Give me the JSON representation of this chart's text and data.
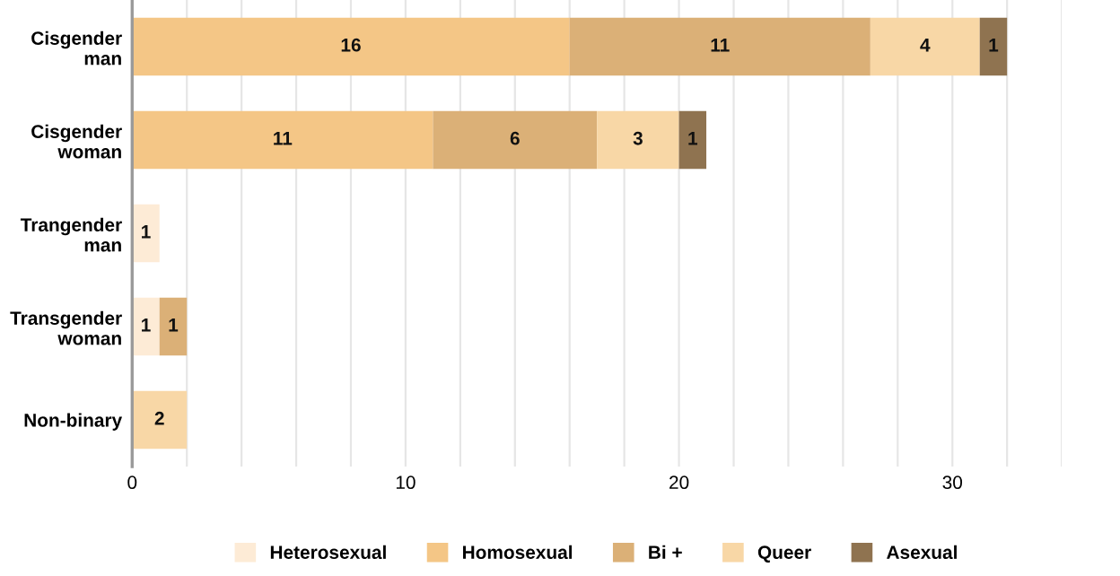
{
  "chart_data": {
    "type": "bar",
    "orientation": "horizontal",
    "stacked": true,
    "data_labels": true,
    "grid": "x",
    "legend": "bottom",
    "categories": [
      "Cisgender\nman",
      "Cisgender\nwoman",
      "Trangender\nman",
      "Transgender\nwoman",
      "Non-binary"
    ],
    "xlim": [
      0,
      34
    ],
    "xticks": [
      0,
      {
        "value": 2,
        "label": null
      },
      {
        "value": 4,
        "label": null
      },
      {
        "value": 6,
        "label": null
      },
      {
        "value": 8,
        "label": null
      },
      10,
      {
        "value": 12,
        "label": null
      },
      {
        "value": 14,
        "label": null
      },
      {
        "value": 16,
        "label": null
      },
      {
        "value": 18,
        "label": null
      },
      20,
      {
        "value": 22,
        "label": null
      },
      {
        "value": 24,
        "label": null
      },
      {
        "value": 26,
        "label": null
      },
      {
        "value": 28,
        "label": null
      },
      30,
      {
        "value": 32,
        "label": null
      },
      {
        "value": 34,
        "label": null
      }
    ],
    "series": [
      {
        "name": "Heterosexual",
        "color": "#fdebd6",
        "values": [
          null,
          null,
          1,
          1,
          null
        ]
      },
      {
        "name": "Homosexual",
        "color": "#f4c686",
        "values": [
          16,
          11,
          null,
          null,
          null
        ]
      },
      {
        "name": "Bi +",
        "color": "#dbb077",
        "values": [
          11,
          6,
          null,
          1,
          null
        ]
      },
      {
        "name": "Queer",
        "color": "#f8d7a6",
        "values": [
          4,
          3,
          null,
          null,
          2
        ]
      },
      {
        "name": "Asexual",
        "color": "#8f7350",
        "values": [
          1,
          1,
          null,
          null,
          null
        ]
      }
    ]
  }
}
